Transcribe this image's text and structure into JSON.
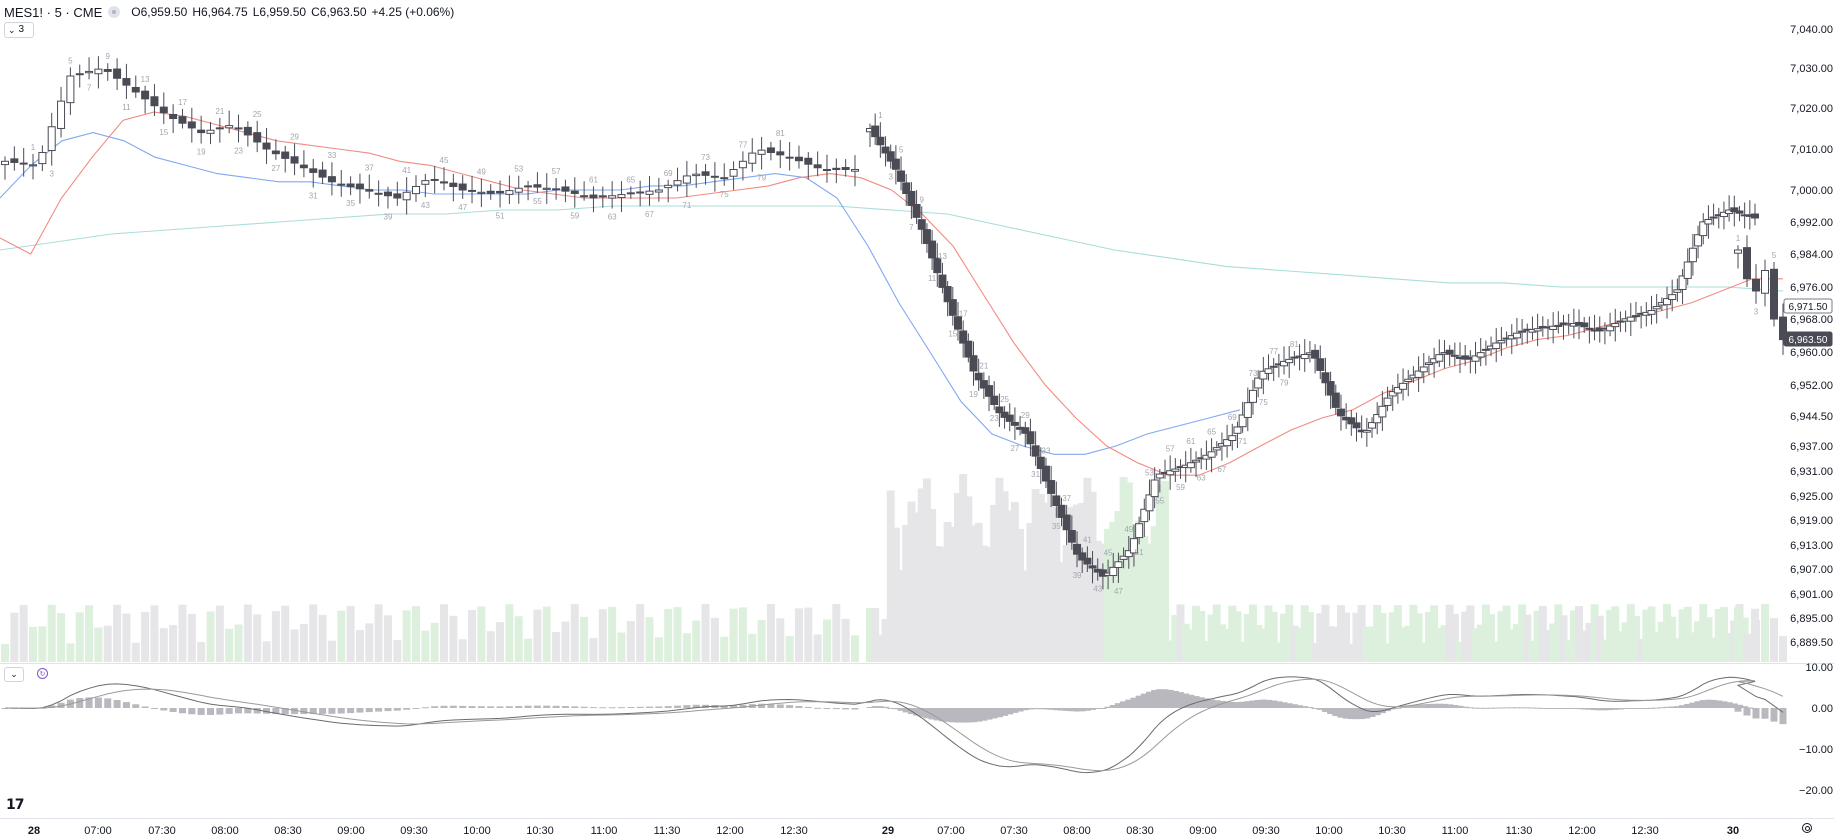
{
  "legend": {
    "symbol": "MES1! · 5 · CME",
    "o_label": "O",
    "o_value": "6,959.50",
    "h_label": "H",
    "h_value": "6,964.75",
    "l_label": "L",
    "l_value": "6,959.50",
    "c_label": "C",
    "c_value": "6,963.50",
    "change": "+4.25 (+0.06%)"
  },
  "indicators_toggle": {
    "count": "3",
    "icon": "chevron-down-icon"
  },
  "logo_text": "17",
  "colors": {
    "up_candle_fill": "#ffffff",
    "down_candle_fill": "#4a4b55",
    "candle_border": "#4a4b55",
    "ema_fast": "#f28b82",
    "ema_mid": "#82a8f0",
    "ema_slow": "#a9ddd9",
    "volume_up": "#dcf0dd",
    "volume_down": "#e6e6e9",
    "macd_line": "#6b6b6b",
    "signal_line": "#9a9a9a",
    "histogram": "#b8b8be",
    "last_price_bg": "#4a4b55"
  },
  "chart_data": {
    "type": "candlestick",
    "symbol": "MES1!",
    "interval": "5",
    "exchange": "CME",
    "price_axis": {
      "ticks": [
        "7,040.00",
        "7,030.00",
        "7,020.00",
        "7,010.00",
        "7,000.00",
        "6,992.00",
        "6,984.00",
        "6,976.00",
        "6,968.00",
        "6,960.00",
        "6,952.00",
        "6,944.50",
        "6,937.00",
        "6,931.00",
        "6,925.00",
        "6,919.00",
        "6,913.00",
        "6,907.00",
        "6,901.00",
        "6,895.00",
        "6,889.50"
      ],
      "ylim": [
        6888,
        7042
      ]
    },
    "time_axis": {
      "ticks": [
        {
          "label": "28",
          "bold": true
        },
        {
          "label": "07:00"
        },
        {
          "label": "07:30"
        },
        {
          "label": "08:00"
        },
        {
          "label": "08:30"
        },
        {
          "label": "09:00"
        },
        {
          "label": "09:30"
        },
        {
          "label": "10:00"
        },
        {
          "label": "10:30"
        },
        {
          "label": "11:00"
        },
        {
          "label": "11:30"
        },
        {
          "label": "12:00"
        },
        {
          "label": "12:30"
        },
        {
          "label": "29",
          "bold": true
        },
        {
          "label": "07:00"
        },
        {
          "label": "07:30"
        },
        {
          "label": "08:00"
        },
        {
          "label": "08:30"
        },
        {
          "label": "09:00"
        },
        {
          "label": "09:30"
        },
        {
          "label": "10:00"
        },
        {
          "label": "10:30"
        },
        {
          "label": "11:00"
        },
        {
          "label": "11:30"
        },
        {
          "label": "12:00"
        },
        {
          "label": "12:30"
        },
        {
          "label": "30",
          "bold": true
        }
      ]
    },
    "price_badges": [
      {
        "value": "6,971.50",
        "style": "outline"
      },
      {
        "value": "6,963.50",
        "style": "filled"
      }
    ],
    "ema_fast_path": [
      [
        0,
        6988
      ],
      [
        1,
        6984
      ],
      [
        2,
        6998
      ],
      [
        3,
        7008
      ],
      [
        4,
        7017
      ],
      [
        5,
        7019
      ],
      [
        6,
        7018
      ],
      [
        7,
        7016
      ],
      [
        8,
        7014
      ],
      [
        9,
        7012
      ],
      [
        10,
        7011
      ],
      [
        11,
        7010
      ],
      [
        12,
        7009
      ],
      [
        13,
        7007
      ],
      [
        14,
        7006
      ],
      [
        15,
        7004
      ],
      [
        16,
        7002
      ],
      [
        17,
        7000
      ],
      [
        18,
        6999
      ],
      [
        19,
        6998
      ],
      [
        20,
        6998
      ],
      [
        21,
        6998
      ],
      [
        22,
        6998
      ],
      [
        23,
        6999
      ],
      [
        24,
        7000
      ],
      [
        25,
        7001
      ],
      [
        26,
        7003
      ],
      [
        27,
        7004
      ],
      [
        28,
        7003
      ],
      [
        29,
        7000
      ],
      [
        30,
        6994
      ],
      [
        31,
        6986
      ],
      [
        32,
        6974
      ],
      [
        33,
        6962
      ],
      [
        34,
        6952
      ],
      [
        35,
        6944
      ],
      [
        36,
        6937
      ],
      [
        37,
        6933
      ],
      [
        38,
        6930
      ],
      [
        39,
        6930
      ],
      [
        40,
        6933
      ],
      [
        41,
        6937
      ],
      [
        42,
        6941
      ],
      [
        43,
        6944
      ],
      [
        44,
        6946
      ],
      [
        45,
        6950
      ],
      [
        46,
        6953
      ],
      [
        47,
        6956
      ],
      [
        48,
        6958
      ],
      [
        49,
        6961
      ],
      [
        50,
        6963
      ],
      [
        51,
        6964
      ],
      [
        52,
        6966
      ],
      [
        53,
        6968
      ],
      [
        54,
        6970
      ],
      [
        55,
        6972
      ],
      [
        56,
        6975
      ],
      [
        57,
        6978
      ],
      [
        58,
        6978
      ]
    ],
    "ema_mid_path": [
      [
        0,
        6998
      ],
      [
        1,
        7006
      ],
      [
        2,
        7012
      ],
      [
        3,
        7014
      ],
      [
        4,
        7012
      ],
      [
        5,
        7008
      ],
      [
        6,
        7006
      ],
      [
        7,
        7004
      ],
      [
        8,
        7003
      ],
      [
        9,
        7002
      ],
      [
        10,
        7002
      ],
      [
        11,
        7001
      ],
      [
        12,
        7000
      ],
      [
        13,
        7000
      ],
      [
        14,
        6999
      ],
      [
        15,
        6999
      ],
      [
        16,
        6999
      ],
      [
        17,
        6999
      ],
      [
        18,
        7000
      ],
      [
        19,
        7000
      ],
      [
        20,
        7000
      ],
      [
        21,
        7001
      ],
      [
        22,
        7001
      ],
      [
        23,
        7002
      ],
      [
        24,
        7003
      ],
      [
        25,
        7004
      ],
      [
        26,
        7003
      ],
      [
        27,
        6998
      ],
      [
        28,
        6986
      ],
      [
        29,
        6972
      ],
      [
        30,
        6960
      ],
      [
        31,
        6948
      ],
      [
        32,
        6940
      ],
      [
        33,
        6937
      ],
      [
        34,
        6935
      ],
      [
        35,
        6935
      ],
      [
        36,
        6937
      ],
      [
        37,
        6940
      ],
      [
        38,
        6942
      ],
      [
        39,
        6944
      ],
      [
        40,
        6946
      ]
    ],
    "ema_slow_path": [
      [
        0,
        6985
      ],
      [
        1,
        6987
      ],
      [
        2,
        6989
      ],
      [
        3,
        6990
      ],
      [
        4,
        6991
      ],
      [
        5,
        6992
      ],
      [
        6,
        6993
      ],
      [
        7,
        6994
      ],
      [
        8,
        6994
      ],
      [
        9,
        6995
      ],
      [
        10,
        6995
      ],
      [
        11,
        6996
      ],
      [
        12,
        6996
      ],
      [
        13,
        6996
      ],
      [
        14,
        6996
      ],
      [
        15,
        6996
      ],
      [
        16,
        6995
      ],
      [
        17,
        6994
      ],
      [
        18,
        6991
      ],
      [
        19,
        6988
      ],
      [
        20,
        6985
      ],
      [
        21,
        6983
      ],
      [
        22,
        6981
      ],
      [
        23,
        6980
      ],
      [
        24,
        6979
      ],
      [
        25,
        6978
      ],
      [
        26,
        6977
      ],
      [
        27,
        6977
      ],
      [
        28,
        6976
      ],
      [
        29,
        6976
      ],
      [
        30,
        6976
      ],
      [
        31,
        6976
      ],
      [
        32,
        6975
      ]
    ],
    "bar_labels_day1": [
      "1",
      "3",
      "5",
      "7",
      "9",
      "11",
      "13",
      "15",
      "17",
      "19",
      "21",
      "23",
      "25",
      "27",
      "29",
      "31",
      "33",
      "35",
      "37",
      "39",
      "41",
      "43",
      "45",
      "47",
      "49",
      "51",
      "53",
      "55",
      "57",
      "59",
      "61",
      "63",
      "65",
      "67",
      "69",
      "71",
      "73",
      "75",
      "77",
      "79",
      "81"
    ],
    "bar_labels_day2": [
      "1",
      "3",
      "5",
      "7",
      "9",
      "11",
      "13",
      "15",
      "17",
      "19",
      "21",
      "23",
      "25",
      "27",
      "29",
      "31",
      "33",
      "35",
      "37",
      "39",
      "41",
      "43",
      "45",
      "47",
      "49",
      "51",
      "53",
      "55",
      "57",
      "59",
      "61",
      "63",
      "65",
      "67",
      "69",
      "71",
      "73",
      "75",
      "77",
      "79",
      "81"
    ],
    "bar_labels_day3": [
      "1",
      "3",
      "5"
    ],
    "macd": {
      "axis_ticks": [
        "10.00",
        "0.00",
        "−10.00",
        "−20.00"
      ],
      "ylim": [
        -24,
        12
      ]
    }
  }
}
